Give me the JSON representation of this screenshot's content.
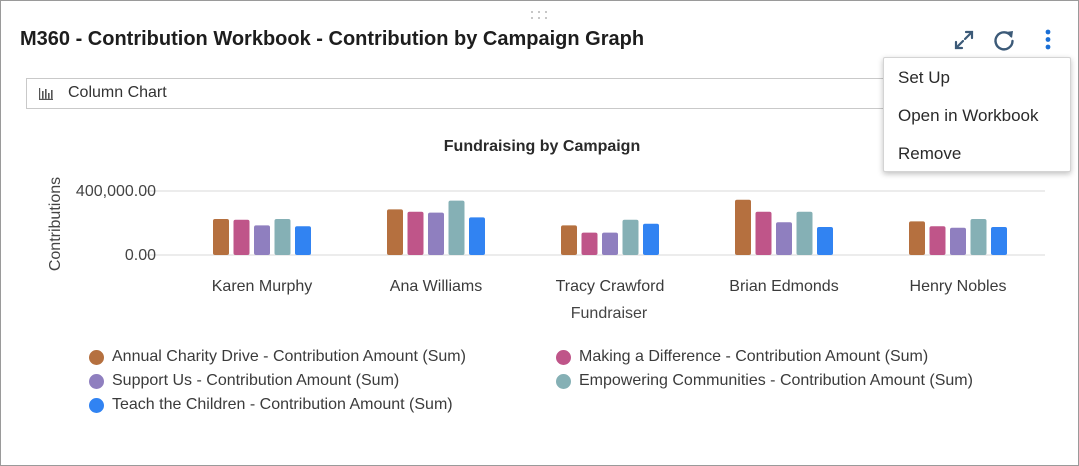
{
  "header": {
    "title": "M360 - Contribution Workbook - Contribution by Campaign Graph"
  },
  "toolbar": {
    "icons": [
      "expand-icon",
      "refresh-icon",
      "more-vertical-icon"
    ],
    "accent": "#1a6fd6"
  },
  "chart_type_selector": {
    "label": "Column Chart",
    "icon": "column-chart-icon"
  },
  "menu": {
    "items": [
      {
        "label": "Set Up"
      },
      {
        "label": "Open in Workbook"
      },
      {
        "label": "Remove"
      }
    ]
  },
  "chart_data": {
    "type": "bar",
    "title": "Fundraising by Campaign",
    "xlabel": "Fundraiser",
    "ylabel": "Contributions",
    "yticks": [
      "0.00",
      "400,000.00"
    ],
    "ylim": [
      0,
      400000
    ],
    "grid": true,
    "legend_placement": "bottom",
    "categories": [
      "Karen Murphy",
      "Ana Williams",
      "Tracy Crawford",
      "Brian Edmonds",
      "Henry Nobles"
    ],
    "series": [
      {
        "name": "Annual Charity Drive - Contribution Amount (Sum)",
        "color": "#b5703f",
        "values": [
          225000,
          285000,
          185000,
          345000,
          210000
        ]
      },
      {
        "name": "Making a Difference - Contribution Amount (Sum)",
        "color": "#bf5589",
        "values": [
          220000,
          270000,
          140000,
          270000,
          180000
        ]
      },
      {
        "name": "Support Us - Contribution Amount (Sum)",
        "color": "#8f7fbf",
        "values": [
          185000,
          265000,
          140000,
          205000,
          170000
        ]
      },
      {
        "name": "Empowering Communities - Contribution Amount (Sum)",
        "color": "#85b0b5",
        "values": [
          225000,
          340000,
          220000,
          270000,
          225000
        ]
      },
      {
        "name": "Teach the Children - Contribution Amount (Sum)",
        "color": "#3183f2",
        "values": [
          180000,
          235000,
          195000,
          175000,
          175000
        ]
      }
    ]
  }
}
